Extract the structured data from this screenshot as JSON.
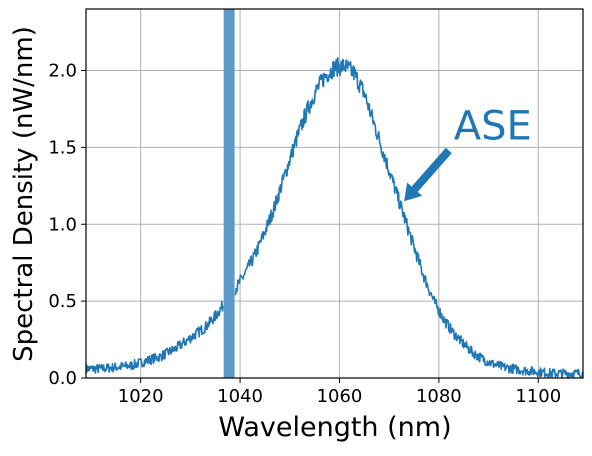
{
  "chart_data": {
    "type": "line",
    "title": "",
    "xlabel": "Wavelength (nm)",
    "ylabel": "Spectral Density (nW/nm)",
    "xlim": [
      1009,
      1109
    ],
    "ylim": [
      0,
      2.4
    ],
    "xticks": [
      1020,
      1040,
      1060,
      1080,
      1100
    ],
    "yticks": [
      0.0,
      0.5,
      1.0,
      1.5,
      2.0
    ],
    "xtick_labels": [
      "1020",
      "1040",
      "1060",
      "1080",
      "1100"
    ],
    "ytick_labels": [
      "0.0",
      "0.5",
      "1.0",
      "1.5",
      "2.0"
    ],
    "grid": true,
    "legend": "none",
    "series_color": "#1f77b4",
    "band_color": "#5b9ac8",
    "series": [
      {
        "x": [
          1009,
          1012,
          1015,
          1018,
          1021,
          1024,
          1027,
          1030,
          1033,
          1035,
          1036.5,
          1039.5,
          1041,
          1043,
          1045,
          1047,
          1049,
          1051,
          1053,
          1055,
          1057,
          1059,
          1061,
          1063,
          1065,
          1067,
          1069,
          1071,
          1073,
          1075,
          1077,
          1079,
          1081,
          1083,
          1085,
          1087,
          1089,
          1091,
          1093,
          1095,
          1097,
          1100,
          1103,
          1106,
          1109
        ],
        "y": [
          0.06,
          0.06,
          0.07,
          0.08,
          0.11,
          0.14,
          0.19,
          0.26,
          0.33,
          0.4,
          0.47,
          0.6,
          0.68,
          0.8,
          0.95,
          1.12,
          1.32,
          1.52,
          1.7,
          1.85,
          1.96,
          2.02,
          2.03,
          1.98,
          1.85,
          1.65,
          1.45,
          1.25,
          1.05,
          0.85,
          0.66,
          0.5,
          0.38,
          0.29,
          0.22,
          0.16,
          0.12,
          0.09,
          0.07,
          0.06,
          0.05,
          0.04,
          0.03,
          0.03,
          0.03
        ]
      }
    ],
    "pump_band": {
      "x_range": [
        1036.7,
        1038.9
      ],
      "y_top": 2.4
    },
    "annotation": {
      "text": "ASE",
      "color": "#1f77b4",
      "arrow_tip": [
        1073,
        1.15
      ],
      "arrow_tail": [
        1082,
        1.48
      ],
      "text_pos": [
        1083,
        1.55
      ]
    }
  }
}
